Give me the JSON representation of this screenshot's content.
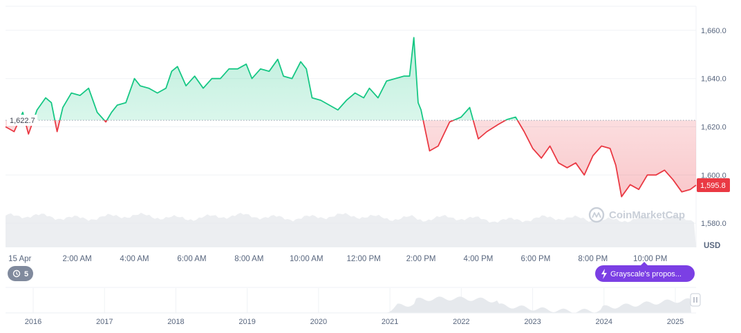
{
  "chart_data": {
    "type": "line",
    "currency": "USD",
    "ylim": [
      1570,
      1670
    ],
    "y_ticks": [
      1580,
      1600,
      1620,
      1640,
      1660
    ],
    "y_tick_labels": [
      "1,580.0",
      "1,600.0",
      "1,620.0",
      "1,640.0",
      "1,660.0"
    ],
    "reference_label": "1,622.7",
    "reference_value": 1622.7,
    "last_price_label": "1,595.8",
    "last_price_value": 1595.8,
    "x_labels": [
      "15 Apr",
      "2:00 AM",
      "4:00 AM",
      "6:00 AM",
      "8:00 AM",
      "10:00 AM",
      "12:00 PM",
      "2:00 PM",
      "4:00 PM",
      "6:00 PM",
      "8:00 PM",
      "10:00 PM"
    ],
    "x_start_hours": -0.5,
    "x_end_hours": 23.6,
    "series": [
      {
        "x_hours": [
          -0.5,
          -0.2,
          0.1,
          0.3,
          0.6,
          0.9,
          1.1,
          1.3,
          1.5,
          1.8,
          2.1,
          2.4,
          2.7,
          3.0,
          3.2,
          3.4,
          3.7,
          4.0,
          4.2,
          4.5,
          4.8,
          5.1,
          5.3,
          5.5,
          5.8,
          6.1,
          6.4,
          6.7,
          7.0,
          7.3,
          7.6,
          7.9,
          8.1,
          8.4,
          8.7,
          9.0,
          9.2,
          9.5,
          9.8,
          10.0,
          10.2,
          10.5,
          10.8,
          11.1,
          11.4,
          11.7,
          12.0,
          12.2,
          12.5,
          12.8,
          13.1,
          13.4,
          13.6,
          13.75,
          13.9,
          14.0,
          14.3,
          14.6,
          15.0,
          15.4,
          15.7,
          16.0,
          16.3,
          16.7,
          17.0,
          17.3,
          17.6,
          17.9,
          18.2,
          18.5,
          18.8,
          19.1,
          19.4,
          19.7,
          20.0,
          20.3,
          20.6,
          20.8,
          21.0,
          21.3,
          21.6,
          21.9,
          22.2,
          22.5,
          22.8,
          23.1,
          23.4,
          23.6
        ],
        "values": [
          1620,
          1618,
          1626,
          1617,
          1627,
          1632,
          1630,
          1618,
          1628,
          1634,
          1633,
          1636,
          1626,
          1622,
          1626,
          1629,
          1630,
          1640,
          1637,
          1636,
          1634,
          1636,
          1643,
          1645,
          1637,
          1641,
          1636,
          1640,
          1640,
          1644,
          1644,
          1646,
          1640,
          1644,
          1643,
          1648,
          1641,
          1640,
          1647,
          1644,
          1632,
          1631,
          1629,
          1627,
          1631,
          1634,
          1632,
          1636,
          1632,
          1639,
          1640,
          1641,
          1641,
          1657,
          1630,
          1627,
          1610,
          1612,
          1622,
          1624,
          1628,
          1615,
          1618,
          1621,
          1623,
          1624,
          1618,
          1611,
          1607,
          1612,
          1605,
          1603,
          1605,
          1600,
          1608,
          1612,
          1611,
          1604,
          1591,
          1596,
          1594,
          1600,
          1600,
          1602,
          1598,
          1593,
          1594,
          1595.8
        ]
      }
    ],
    "volume_note": "",
    "navigator_labels": [
      "2016",
      "2017",
      "2018",
      "2019",
      "2020",
      "2021",
      "2022",
      "2023",
      "2024",
      "2025"
    ],
    "watermark": "CoinMarketCap",
    "news_badge_count": "5",
    "news_label": "Grayscale's propos...",
    "colors": {
      "up": "#16c784",
      "down": "#ea3943",
      "grid": "#eff2f5",
      "axis_text": "#58667e",
      "volume": "#e5e8ec",
      "navigator": "#eceef1",
      "news_purple": "#7b3fe4",
      "badge_gray": "#808a9d"
    }
  }
}
